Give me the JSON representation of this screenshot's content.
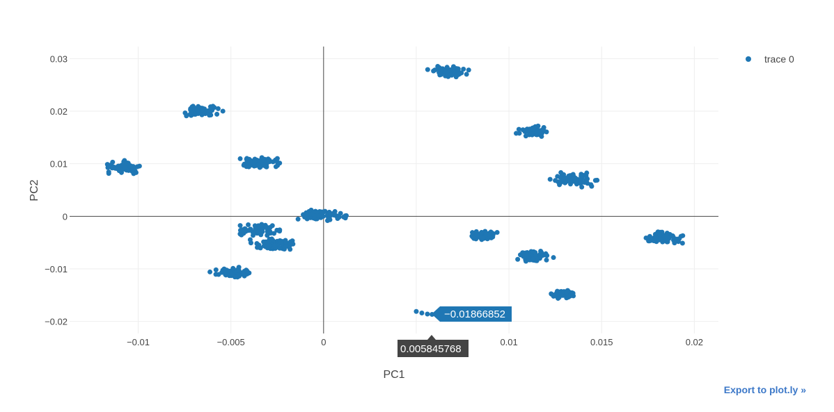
{
  "export_link": "Export to plot.ly »",
  "hover": {
    "x_label": "0.005845768",
    "y_label": "−0.01866852"
  },
  "colors": {
    "marker": "#1f77b4",
    "grid": "#eeeeee",
    "zeroline": "#444444",
    "hover_x_bg": "#444444"
  },
  "chart_data": {
    "type": "scatter",
    "xlabel": "PC1",
    "ylabel": "PC2",
    "xlim": [
      -0.0137,
      0.0213
    ],
    "ylim": [
      -0.0223,
      0.0323
    ],
    "xticks": [
      -0.01,
      -0.005,
      0,
      0.005,
      0.01,
      0.015,
      0.02
    ],
    "xtick_labels": [
      "−0.01",
      "−0.005",
      "0",
      "",
      "0.01",
      "0.015",
      "0.02"
    ],
    "yticks": [
      -0.02,
      -0.01,
      0,
      0.01,
      0.02,
      0.03
    ],
    "ytick_labels": [
      "−0.02",
      "−0.01",
      "0",
      "0.01",
      "0.02",
      "0.03"
    ],
    "grid": true,
    "legend_position": "top-right",
    "series": [
      {
        "name": "trace 0",
        "clusters": [
          {
            "cx": 0.0068,
            "cy": 0.0275,
            "sx": 0.0009,
            "sy": 0.0009
          },
          {
            "cx": 0.0113,
            "cy": 0.0162,
            "sx": 0.0007,
            "sy": 0.0008
          },
          {
            "cx": 0.0136,
            "cy": 0.0069,
            "sx": 0.0011,
            "sy": 0.0011
          },
          {
            "cx": 0.0183,
            "cy": -0.0041,
            "sx": 0.001,
            "sy": 0.001
          },
          {
            "cx": 0.0085,
            "cy": -0.0037,
            "sx": 0.0007,
            "sy": 0.0008
          },
          {
            "cx": 0.0114,
            "cy": -0.0076,
            "sx": 0.0008,
            "sy": 0.001
          },
          {
            "cx": 0.0129,
            "cy": -0.0148,
            "sx": 0.0005,
            "sy": 0.0007
          },
          {
            "cx": 0.0,
            "cy": 0.0002,
            "sx": 0.0011,
            "sy": 0.0011
          },
          {
            "cx": -0.0034,
            "cy": 0.0101,
            "sx": 0.0011,
            "sy": 0.0011
          },
          {
            "cx": -0.0066,
            "cy": 0.0201,
            "sx": 0.0009,
            "sy": 0.001
          },
          {
            "cx": -0.0108,
            "cy": 0.0093,
            "sx": 0.0009,
            "sy": 0.0009
          },
          {
            "cx": -0.0034,
            "cy": -0.0026,
            "sx": 0.001,
            "sy": 0.001
          },
          {
            "cx": -0.0026,
            "cy": -0.0053,
            "sx": 0.0011,
            "sy": 0.001
          },
          {
            "cx": -0.005,
            "cy": -0.0108,
            "sx": 0.0009,
            "sy": 0.0009
          }
        ],
        "points_per_cluster": 70,
        "extra_points": [
          {
            "x": 0.005,
            "y": -0.0181
          },
          {
            "x": 0.0053,
            "y": -0.0184
          },
          {
            "x": 0.0056,
            "y": -0.0186
          },
          {
            "x": 0.00585,
            "y": -0.01867
          }
        ]
      }
    ]
  }
}
